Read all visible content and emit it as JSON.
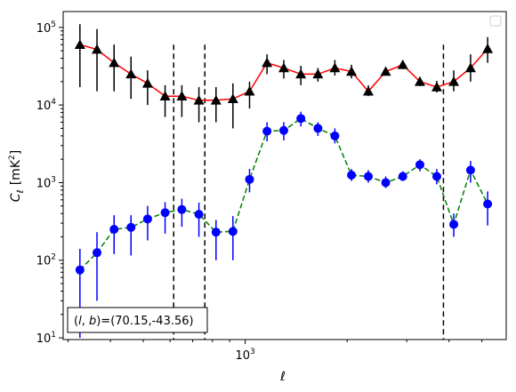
{
  "chart_data": {
    "type": "line",
    "xscale": "log",
    "yscale": "log",
    "xlim": [
      290,
      5900
    ],
    "ylim": [
      9.5,
      160000
    ],
    "xlabel_tex": "ℓ",
    "ylabel_main": "C",
    "ylabel_sub": "ℓ",
    "ylabel_unit_pre": "[mK",
    "ylabel_unit_sup": "2",
    "ylabel_unit_post": "]",
    "x_ticks": [
      {
        "value": 1000,
        "base": "10",
        "exp": "3"
      }
    ],
    "y_ticks": [
      {
        "value": 10,
        "base": "10",
        "exp": "1"
      },
      {
        "value": 100,
        "base": "10",
        "exp": "2"
      },
      {
        "value": 1000,
        "base": "10",
        "exp": "3"
      },
      {
        "value": 10000,
        "base": "10",
        "exp": "4"
      },
      {
        "value": 100000,
        "base": "10",
        "exp": "5"
      }
    ],
    "annotation": "(l, b)=(70.15,-43.56)",
    "annotation_parts": {
      "open": "(",
      "l": "l",
      "comma": ", ",
      "b": "b",
      "close": ")=(70.15,-43.56)"
    },
    "legend_position": "top-right",
    "vlines": [
      {
        "x": 615,
        "color": "#000000",
        "style": "dashed"
      },
      {
        "x": 760,
        "color": "#000000",
        "style": "dashed"
      },
      {
        "x": 3850,
        "color": "#000000",
        "style": "dashed"
      }
    ],
    "series": [
      {
        "color": "#ff0000",
        "marker": "triangle",
        "marker_color": "#000000",
        "line_style": "solid",
        "points": [
          {
            "x": 325,
            "y": 60000,
            "lo": 17000,
            "hi": 110000
          },
          {
            "x": 365,
            "y": 52000,
            "lo": 15000,
            "hi": 95000
          },
          {
            "x": 410,
            "y": 35000,
            "lo": 15000,
            "hi": 60000
          },
          {
            "x": 460,
            "y": 25000,
            "lo": 12000,
            "hi": 42000
          },
          {
            "x": 515,
            "y": 19000,
            "lo": 10000,
            "hi": 28000
          },
          {
            "x": 580,
            "y": 13000,
            "lo": 7000,
            "hi": 18000
          },
          {
            "x": 650,
            "y": 13000,
            "lo": 7000,
            "hi": 18000
          },
          {
            "x": 730,
            "y": 11500,
            "lo": 6000,
            "hi": 17000
          },
          {
            "x": 820,
            "y": 11500,
            "lo": 6000,
            "hi": 17000
          },
          {
            "x": 920,
            "y": 12000,
            "lo": 5000,
            "hi": 19000
          },
          {
            "x": 1030,
            "y": 15000,
            "lo": 9000,
            "hi": 20000
          },
          {
            "x": 1160,
            "y": 35000,
            "lo": 25000,
            "hi": 45000
          },
          {
            "x": 1300,
            "y": 30000,
            "lo": 22000,
            "hi": 38000
          },
          {
            "x": 1460,
            "y": 25000,
            "lo": 18000,
            "hi": 32000
          },
          {
            "x": 1640,
            "y": 25000,
            "lo": 20000,
            "hi": 30000
          },
          {
            "x": 1840,
            "y": 30000,
            "lo": 24000,
            "hi": 38000
          },
          {
            "x": 2060,
            "y": 27000,
            "lo": 22000,
            "hi": 33000
          },
          {
            "x": 2310,
            "y": 15000,
            "lo": 13000,
            "hi": 18000
          },
          {
            "x": 2600,
            "y": 27000,
            "lo": 24000,
            "hi": 30000
          },
          {
            "x": 2920,
            "y": 33000,
            "lo": 29000,
            "hi": 37000
          },
          {
            "x": 3280,
            "y": 20000,
            "lo": 17500,
            "hi": 23000
          },
          {
            "x": 3680,
            "y": 17000,
            "lo": 14500,
            "hi": 20500
          },
          {
            "x": 4130,
            "y": 20000,
            "lo": 15000,
            "hi": 28000
          },
          {
            "x": 4630,
            "y": 30000,
            "lo": 20000,
            "hi": 45000
          },
          {
            "x": 5200,
            "y": 53000,
            "lo": 35000,
            "hi": 75000
          }
        ]
      },
      {
        "color": "#008000",
        "marker": "circle",
        "marker_color": "#0000ff",
        "line_style": "dashed",
        "points": [
          {
            "x": 325,
            "y": 75,
            "lo": 10,
            "hi": 140
          },
          {
            "x": 365,
            "y": 125,
            "lo": 30,
            "hi": 230
          },
          {
            "x": 410,
            "y": 250,
            "lo": 120,
            "hi": 380
          },
          {
            "x": 460,
            "y": 265,
            "lo": 115,
            "hi": 380
          },
          {
            "x": 515,
            "y": 340,
            "lo": 180,
            "hi": 500
          },
          {
            "x": 580,
            "y": 410,
            "lo": 220,
            "hi": 560
          },
          {
            "x": 650,
            "y": 450,
            "lo": 270,
            "hi": 620
          },
          {
            "x": 730,
            "y": 390,
            "lo": 200,
            "hi": 550
          },
          {
            "x": 820,
            "y": 230,
            "lo": 100,
            "hi": 330
          },
          {
            "x": 920,
            "y": 235,
            "lo": 100,
            "hi": 370
          },
          {
            "x": 1030,
            "y": 1100,
            "lo": 750,
            "hi": 1500
          },
          {
            "x": 1160,
            "y": 4600,
            "lo": 3400,
            "hi": 6000
          },
          {
            "x": 1300,
            "y": 4700,
            "lo": 3500,
            "hi": 6000
          },
          {
            "x": 1460,
            "y": 6700,
            "lo": 5300,
            "hi": 8200
          },
          {
            "x": 1640,
            "y": 5000,
            "lo": 4000,
            "hi": 6000
          },
          {
            "x": 1840,
            "y": 4000,
            "lo": 3200,
            "hi": 5000
          },
          {
            "x": 2060,
            "y": 1250,
            "lo": 1050,
            "hi": 1500
          },
          {
            "x": 2310,
            "y": 1200,
            "lo": 1000,
            "hi": 1450
          },
          {
            "x": 2600,
            "y": 1000,
            "lo": 850,
            "hi": 1200
          },
          {
            "x": 2920,
            "y": 1200,
            "lo": 1050,
            "hi": 1400
          },
          {
            "x": 3280,
            "y": 1700,
            "lo": 1400,
            "hi": 2000
          },
          {
            "x": 3680,
            "y": 1200,
            "lo": 950,
            "hi": 1500
          },
          {
            "x": 4130,
            "y": 290,
            "lo": 200,
            "hi": 400
          },
          {
            "x": 4630,
            "y": 1450,
            "lo": 1000,
            "hi": 1900
          },
          {
            "x": 5200,
            "y": 530,
            "lo": 280,
            "hi": 770
          }
        ]
      }
    ]
  }
}
